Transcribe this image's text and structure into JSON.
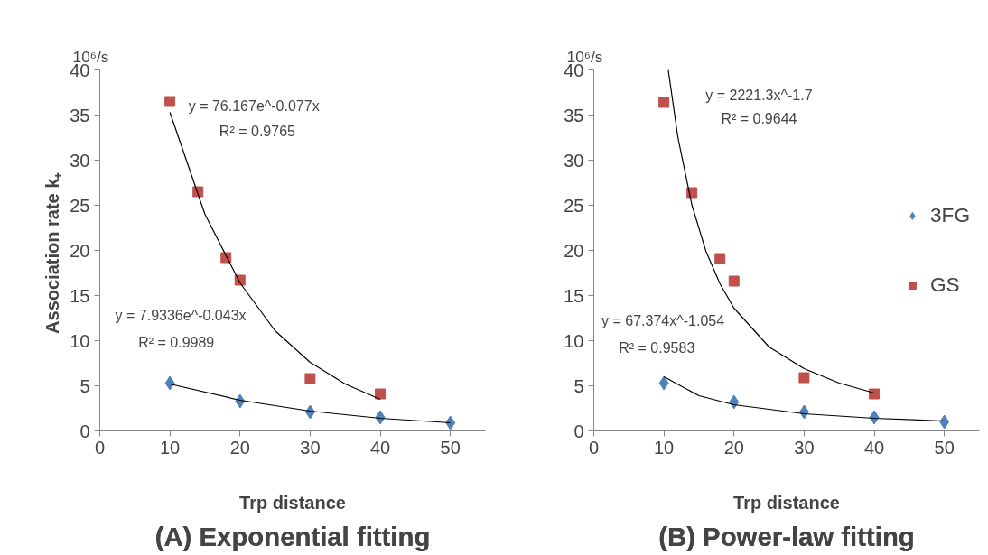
{
  "chart_data": [
    {
      "type": "scatter",
      "title": "(A) Exponential fitting",
      "xlabel": "Trp distance",
      "ylabel": "Association rate  k₊",
      "annotations": [
        "10⁶/s",
        "y = 76.167e^-0.077x",
        "R² = 0.9765",
        "y = 7.9336e^-0.043x",
        "R² = 0.9989"
      ],
      "xlim": [
        0,
        55
      ],
      "ylim": [
        0,
        40
      ],
      "xticks": [
        0,
        10,
        20,
        30,
        40,
        50
      ],
      "yticks": [
        0,
        5,
        10,
        15,
        20,
        25,
        30,
        35,
        40
      ],
      "grid": false,
      "legend": false,
      "series": [
        {
          "color": "#c0504d",
          "marker": "square",
          "x": [
            10,
            14,
            18,
            20,
            30,
            40
          ],
          "values": [
            36.5,
            26.5,
            19.2,
            16.7,
            5.8,
            4.1
          ]
        },
        {
          "color": "#4f81bd",
          "marker": "diamond",
          "x": [
            10,
            20,
            30,
            40,
            50
          ],
          "values": [
            5.3,
            3.3,
            2.1,
            1.5,
            0.9
          ]
        },
        {
          "type": "line",
          "color": "#000000",
          "marker": "none",
          "x": [
            10,
            15,
            20,
            25,
            30,
            35,
            40
          ],
          "values": [
            35.3,
            24.0,
            16.4,
            11.1,
            7.6,
            5.2,
            3.5
          ]
        },
        {
          "type": "line",
          "color": "#000000",
          "marker": "none",
          "x": [
            10,
            20,
            30,
            40,
            50
          ],
          "values": [
            5.2,
            3.4,
            2.2,
            1.4,
            0.9
          ]
        }
      ]
    },
    {
      "type": "scatter",
      "title": "(B) Power-law fitting",
      "xlabel": "Trp distance",
      "annotations": [
        "10⁶/s",
        "y = 2221.3x^-1.7",
        "R² = 0.9644",
        "y = 67.374x^-1.054",
        "R² = 0.9583"
      ],
      "xlim": [
        0,
        55
      ],
      "ylim": [
        0,
        40
      ],
      "xticks": [
        0,
        10,
        20,
        30,
        40,
        50
      ],
      "yticks": [
        0,
        5,
        10,
        15,
        20,
        25,
        30,
        35,
        40
      ],
      "grid": false,
      "legend": "right",
      "series": [
        {
          "name": "3FG",
          "color": "#4f81bd",
          "marker": "diamond",
          "x": [
            10,
            20,
            30,
            40,
            50
          ],
          "values": [
            5.3,
            3.2,
            2.1,
            1.5,
            1.0
          ]
        },
        {
          "name": "GS",
          "color": "#c0504d",
          "marker": "square",
          "x": [
            10,
            14,
            18,
            20,
            30,
            40
          ],
          "values": [
            36.4,
            26.4,
            19.1,
            16.6,
            5.9,
            4.1
          ]
        },
        {
          "type": "line",
          "color": "#000000",
          "marker": "none",
          "x": [
            10.62,
            12,
            14,
            16,
            18,
            20,
            25,
            30,
            35,
            40
          ],
          "values": [
            40,
            32.5,
            25.0,
            19.9,
            16.3,
            13.6,
            9.3,
            6.9,
            5.3,
            4.2
          ]
        },
        {
          "type": "line",
          "color": "#000000",
          "marker": "none",
          "x": [
            10,
            15,
            20,
            30,
            40,
            50
          ],
          "values": [
            6.0,
            3.9,
            2.9,
            1.9,
            1.4,
            1.1
          ]
        }
      ]
    }
  ]
}
